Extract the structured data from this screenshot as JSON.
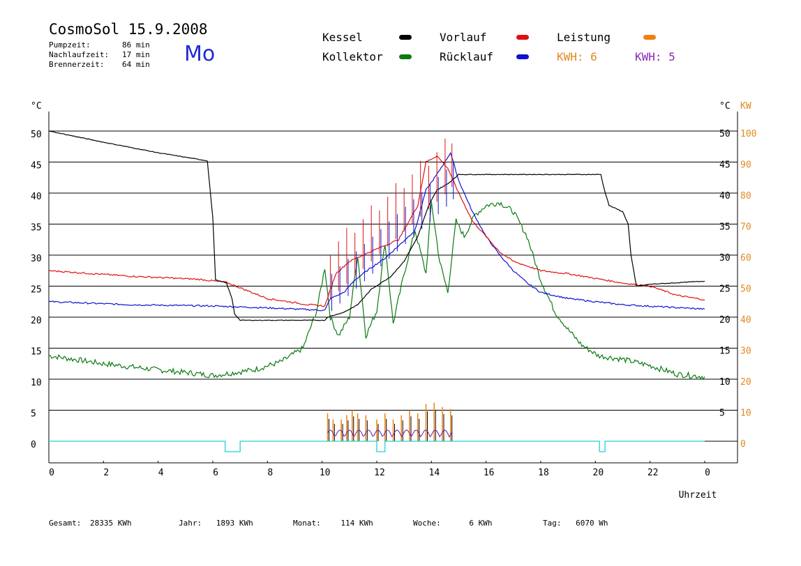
{
  "header": {
    "title": "CosmoSol 15.9.2008",
    "day": "Mo",
    "stats": [
      {
        "label": "Pumpzeit:",
        "value": "86 min"
      },
      {
        "label": "Nachlaufzeit:",
        "value": "17 min"
      },
      {
        "label": "Brennerzeit:",
        "value": "64 min"
      }
    ]
  },
  "legend": {
    "kessel": {
      "label": "Kessel",
      "color": "#000000"
    },
    "kollektor": {
      "label": "Kollektor",
      "color": "#0c7a12"
    },
    "vorlauf": {
      "label": "Vorlauf",
      "color": "#e01010"
    },
    "ruecklauf": {
      "label": "Rücklauf",
      "color": "#1010d0"
    },
    "leistung": {
      "label": "Leistung",
      "color": "#f08010"
    },
    "kwh1": "KWH: 6",
    "kwh1_color": "#e08a20",
    "kwh2": "KWH: 5",
    "kwh2_color": "#8a2ab0"
  },
  "footer": {
    "gesamt": {
      "label": "Gesamt:",
      "value": "28335 KWh"
    },
    "jahr": {
      "label": "Jahr:",
      "value": "1893 KWh"
    },
    "monat": {
      "label": "Monat:",
      "value": "114 KWh"
    },
    "woche": {
      "label": "Woche:",
      "value": "6 KWh"
    },
    "tag": {
      "label": "Tag:",
      "value": "6070 Wh"
    }
  },
  "chart_data": {
    "type": "line",
    "xlabel": "Uhrzeit",
    "ylabel_left": "°C",
    "ylabel_right_1": "°C",
    "ylabel_right_2": "KW",
    "x_ticks": [
      "0",
      "2",
      "4",
      "6",
      "8",
      "10",
      "12",
      "14",
      "16",
      "18",
      "20",
      "22",
      "0"
    ],
    "y_left_ticks": [
      "0",
      "5",
      "10",
      "15",
      "20",
      "25",
      "30",
      "35",
      "40",
      "45",
      "50"
    ],
    "y_right_ticks": [
      "5",
      "10",
      "15",
      "20",
      "25",
      "30",
      "35",
      "40",
      "45",
      "50"
    ],
    "y_kw_ticks": [
      "0",
      "10",
      "20",
      "30",
      "40",
      "50",
      "60",
      "70",
      "80",
      "90",
      "100"
    ],
    "xlim": [
      0,
      24
    ],
    "ylim": [
      0,
      50
    ],
    "grid": true,
    "series": [
      {
        "name": "Kessel",
        "color": "#000000",
        "points": [
          [
            0,
            50
          ],
          [
            2,
            48.2
          ],
          [
            4,
            46.5
          ],
          [
            5.8,
            45.2
          ],
          [
            6,
            36
          ],
          [
            6.1,
            26
          ],
          [
            6.5,
            25.5
          ],
          [
            6.7,
            23
          ],
          [
            6.8,
            20.5
          ],
          [
            7,
            19.5
          ],
          [
            9,
            19.5
          ],
          [
            10.1,
            19.5
          ],
          [
            10.2,
            20
          ],
          [
            10.8,
            20.8
          ],
          [
            11.3,
            22
          ],
          [
            11.8,
            24.5
          ],
          [
            12.5,
            26.5
          ],
          [
            13,
            29
          ],
          [
            13.5,
            33
          ],
          [
            13.9,
            38
          ],
          [
            14.2,
            40.5
          ],
          [
            14.6,
            41.5
          ],
          [
            15,
            43
          ],
          [
            17,
            43
          ],
          [
            20.2,
            43
          ],
          [
            20.3,
            41
          ],
          [
            20.5,
            38
          ],
          [
            21,
            37
          ],
          [
            21.2,
            35
          ],
          [
            21.3,
            30
          ],
          [
            21.5,
            25
          ],
          [
            22,
            25.3
          ],
          [
            24,
            25.8
          ]
        ]
      },
      {
        "name": "Vorlauf",
        "color": "#e01010",
        "points": [
          [
            0,
            27.5
          ],
          [
            3,
            26.6
          ],
          [
            5.5,
            26.1
          ],
          [
            6.5,
            25.6
          ],
          [
            8,
            23
          ],
          [
            9.5,
            22
          ],
          [
            10.1,
            21.8
          ],
          [
            10.5,
            27
          ],
          [
            11,
            29
          ],
          [
            11.5,
            30
          ],
          [
            12,
            31
          ],
          [
            12.8,
            32.5
          ],
          [
            13.5,
            38
          ],
          [
            13.8,
            45
          ],
          [
            14.2,
            46
          ],
          [
            14.6,
            44
          ],
          [
            15,
            40
          ],
          [
            15.5,
            35.5
          ],
          [
            16,
            33
          ],
          [
            16.5,
            30.5
          ],
          [
            17,
            29
          ],
          [
            18,
            27.5
          ],
          [
            19,
            27
          ],
          [
            21,
            25.5
          ],
          [
            22,
            25
          ],
          [
            23,
            23.5
          ],
          [
            24,
            22.8
          ]
        ]
      },
      {
        "name": "Rücklauf",
        "color": "#1010d0",
        "points": [
          [
            0,
            22.5
          ],
          [
            3,
            22
          ],
          [
            6,
            21.8
          ],
          [
            8,
            21.5
          ],
          [
            10.1,
            21.1
          ],
          [
            10.3,
            23
          ],
          [
            10.8,
            24
          ],
          [
            11.2,
            26
          ],
          [
            11.8,
            28
          ],
          [
            12.3,
            29.5
          ],
          [
            12.8,
            31.5
          ],
          [
            13.4,
            34
          ],
          [
            13.8,
            40.5
          ],
          [
            14.2,
            43
          ],
          [
            14.7,
            46.5
          ],
          [
            15,
            42
          ],
          [
            15.5,
            37
          ],
          [
            16,
            33
          ],
          [
            16.5,
            30
          ],
          [
            17,
            27.5
          ],
          [
            17.5,
            25.5
          ],
          [
            18,
            24
          ],
          [
            19,
            23
          ],
          [
            21,
            22
          ],
          [
            24,
            21.3
          ]
        ]
      },
      {
        "name": "Kollektor",
        "color": "#0c7a12",
        "points": [
          [
            0,
            13.8
          ],
          [
            2,
            12.5
          ],
          [
            4,
            11.5
          ],
          [
            5.2,
            11
          ],
          [
            6,
            10.6
          ],
          [
            7.5,
            11.5
          ],
          [
            8.5,
            12.8
          ],
          [
            9.3,
            15
          ],
          [
            9.8,
            21
          ],
          [
            10.1,
            28
          ],
          [
            10.3,
            20
          ],
          [
            10.6,
            17
          ],
          [
            11,
            20
          ],
          [
            11.3,
            30
          ],
          [
            11.6,
            17
          ],
          [
            12,
            21
          ],
          [
            12.3,
            32
          ],
          [
            12.6,
            19
          ],
          [
            13,
            27
          ],
          [
            13.4,
            34
          ],
          [
            13.8,
            27
          ],
          [
            14,
            38.5
          ],
          [
            14.3,
            29
          ],
          [
            14.6,
            24
          ],
          [
            14.9,
            35.5
          ],
          [
            15.2,
            33
          ],
          [
            15.6,
            36.5
          ],
          [
            16,
            38
          ],
          [
            16.5,
            38.5
          ],
          [
            17,
            37
          ],
          [
            17.5,
            33
          ],
          [
            18,
            26
          ],
          [
            18.5,
            21
          ],
          [
            19,
            18
          ],
          [
            19.5,
            15.5
          ],
          [
            20.1,
            13.8
          ],
          [
            21,
            13.2
          ],
          [
            22,
            12.2
          ],
          [
            23,
            10.8
          ],
          [
            24,
            10.4
          ]
        ]
      },
      {
        "name": "Leistung",
        "color": "#f08010",
        "peaks": [
          [
            10.2,
            4.5
          ],
          [
            10.4,
            3.5
          ],
          [
            10.7,
            3.5
          ],
          [
            10.9,
            4.2
          ],
          [
            11.1,
            5
          ],
          [
            11.3,
            4.5
          ],
          [
            11.6,
            4.2
          ],
          [
            12,
            3.5
          ],
          [
            12.3,
            4.5
          ],
          [
            12.6,
            3.5
          ],
          [
            12.9,
            4.2
          ],
          [
            13.2,
            5
          ],
          [
            13.5,
            4.5
          ],
          [
            13.8,
            6
          ],
          [
            14.1,
            6.2
          ],
          [
            14.4,
            5.5
          ],
          [
            14.7,
            5.2
          ]
        ]
      },
      {
        "name": "Pumpe",
        "color": "#20d0d8",
        "value": 0,
        "pulses": [
          [
            6.45,
            7.0
          ],
          [
            12.0,
            12.3
          ],
          [
            20.15,
            20.35
          ]
        ]
      }
    ]
  }
}
